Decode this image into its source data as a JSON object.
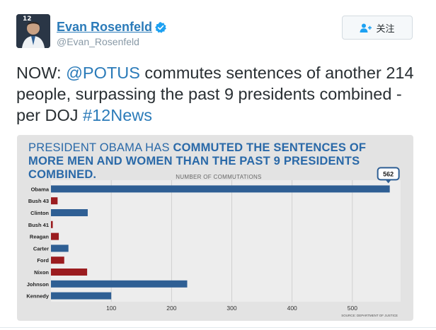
{
  "tweet": {
    "display_name": "Evan Rosenfeld",
    "handle": "@Evan_Rosenfeld",
    "follow_label": "关注",
    "avatar_badge": "12",
    "text_prefix": "NOW: ",
    "mention": "@POTUS",
    "text_middle": " commutes sentences of another 214 people, surpassing the past 9 presidents combined -per DOJ ",
    "hashtag": "#12News"
  },
  "colors": {
    "link": "#2b7bb9",
    "text": "#292f33",
    "bar_blue": "#2f5f94",
    "bar_red": "#9b1c1f",
    "chart_bg": "#e3e3e3"
  },
  "icons": {
    "verified": "verified-badge-icon",
    "follow": "person-add-icon"
  },
  "chart_data": {
    "type": "bar",
    "orientation": "horizontal",
    "title_regular": "PRESIDENT OBAMA HAS ",
    "title_bold": "COMMUTED THE SENTENCES OF MORE MEN AND WOMEN THAN THE PAST 9 PRESIDENTS COMBINED.",
    "xlabel": "NUMBER OF COMMUTATIONS",
    "source": "SOURCE: DEPARTMENT OF JUSTICE",
    "callout": "562",
    "categories": [
      "Obama",
      "Bush 43",
      "Clinton",
      "Bush 41",
      "Reagan",
      "Carter",
      "Ford",
      "Nixon",
      "Johnson",
      "Kennedy"
    ],
    "values": [
      562,
      11,
      61,
      3,
      13,
      29,
      22,
      60,
      226,
      100
    ],
    "bar_colors": [
      "blue",
      "red",
      "blue",
      "red",
      "red",
      "blue",
      "red",
      "red",
      "blue",
      "blue"
    ],
    "xticks": [
      100,
      200,
      300,
      400,
      500
    ],
    "xlim": [
      0,
      580
    ],
    "grid": true
  }
}
